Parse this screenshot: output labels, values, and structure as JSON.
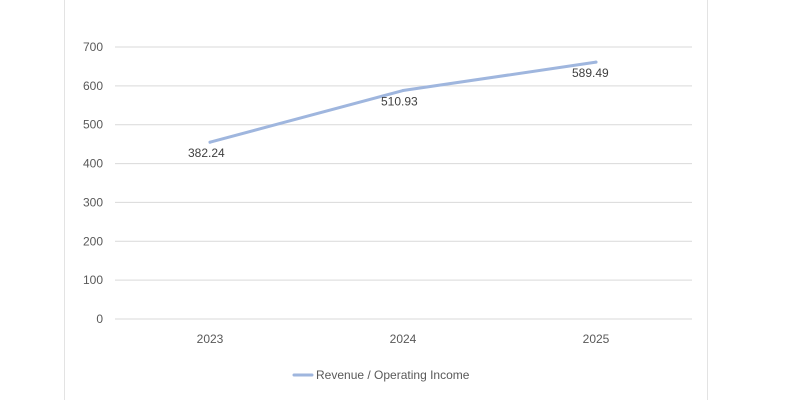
{
  "chart_data": {
    "type": "line",
    "categories": [
      "2023",
      "2024",
      "2025"
    ],
    "series": [
      {
        "name": "Revenue / Operating Income",
        "values": [
          455,
          588,
          661
        ],
        "data_labels": [
          "382.24",
          "510.93",
          "589.49"
        ],
        "color": "#9fb6de"
      }
    ],
    "ylim": [
      0,
      700
    ],
    "yticks": [
      "0",
      "100",
      "200",
      "300",
      "400",
      "500",
      "600",
      "700"
    ],
    "grid": true,
    "legend": "bottom"
  }
}
